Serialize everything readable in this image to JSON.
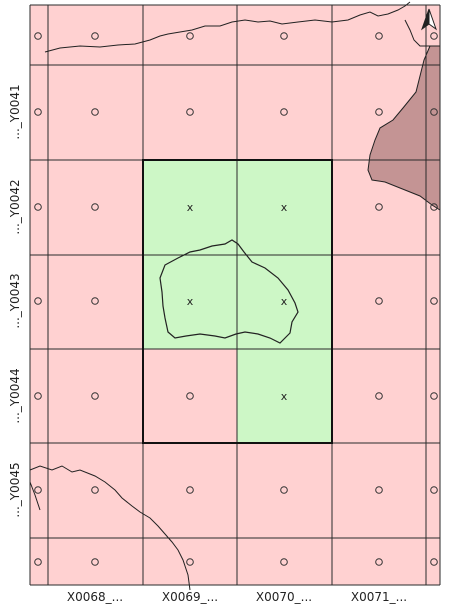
{
  "colors": {
    "outside_cell": "#ffd1d1",
    "selected_cell": "#cdf7c6",
    "grid_line": "#2a2a2a",
    "selection_border": "#111111",
    "neighbor_region": "#c49494",
    "boundary_line": "#222222"
  },
  "icons": {
    "north_arrow": "north-arrow-icon",
    "outside_marker": "circle-marker-icon",
    "selected_marker": "x-marker-icon"
  },
  "axes": {
    "x_labels": [
      "X0068_...",
      "X0069_...",
      "X0070_...",
      "X0071_..."
    ],
    "y_labels": [
      "..._Y0041",
      "..._Y0042",
      "..._Y0043",
      "..._Y0044",
      "..._Y0045"
    ]
  },
  "grid": {
    "selected_cells": [
      {
        "col": 1,
        "row": 1
      },
      {
        "col": 2,
        "row": 1
      },
      {
        "col": 1,
        "row": 2
      },
      {
        "col": 2,
        "row": 2
      },
      {
        "col": 2,
        "row": 3
      }
    ],
    "markers": {
      "outside": "o",
      "selected": "x"
    }
  }
}
